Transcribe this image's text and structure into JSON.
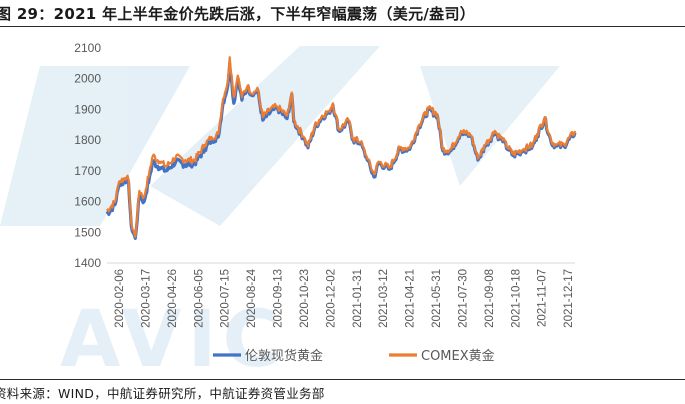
{
  "figure": {
    "title": "图 29：2021 年上半年金价先跌后涨，下半年窄幅震荡（美元/盎司）",
    "source": "资料来源：WIND，中航证券研究所，中航证券资管业务部",
    "watermark": "AVIC"
  },
  "colors": {
    "series_blue": "#4472c4",
    "series_orange": "#ed7d31",
    "axis": "#d9d9d9",
    "tick_text": "#595959",
    "watermark": "#cfe3f1"
  },
  "chart_data": {
    "type": "line",
    "title": "",
    "xlabel": "",
    "ylabel": "",
    "ylim": [
      1400,
      2100
    ],
    "yticks": [
      1400,
      1500,
      1600,
      1700,
      1800,
      1900,
      2000,
      2100
    ],
    "grid": false,
    "legend": "bottom-center",
    "xlim": [
      "2020-02-06",
      "2021-12-31"
    ],
    "x_tick_labels": [
      "2020-02-06",
      "2020-03-17",
      "2020-04-26",
      "2020-06-05",
      "2020-07-15",
      "2020-08-24",
      "2020-09-13",
      "2020-10-23",
      "2020-12-02",
      "2021-01-31",
      "2021-03-12",
      "2021-04-21",
      "2021-05-31",
      "2021-07-30",
      "2021-09-08",
      "2021-10-18",
      "2021-11-07",
      "2021-12-17"
    ],
    "series": [
      {
        "name": "伦敦现货黄金",
        "color": "#4472c4",
        "x": [
          "2020-02-06",
          "2020-02-18",
          "2020-02-24",
          "2020-03-06",
          "2020-03-09",
          "2020-03-13",
          "2020-03-19",
          "2020-03-25",
          "2020-04-01",
          "2020-04-09",
          "2020-04-14",
          "2020-04-24",
          "2020-05-04",
          "2020-05-18",
          "2020-06-01",
          "2020-06-15",
          "2020-06-30",
          "2020-07-10",
          "2020-07-20",
          "2020-07-27",
          "2020-08-03",
          "2020-08-06",
          "2020-08-12",
          "2020-08-18",
          "2020-08-24",
          "2020-09-01",
          "2020-09-10",
          "2020-09-16",
          "2020-09-24",
          "2020-10-05",
          "2020-10-15",
          "2020-10-30",
          "2020-11-06",
          "2020-11-09",
          "2020-11-24",
          "2020-11-30",
          "2020-12-10",
          "2020-12-21",
          "2020-12-31",
          "2021-01-06",
          "2021-01-15",
          "2021-01-29",
          "2021-02-05",
          "2021-02-16",
          "2021-02-26",
          "2021-03-08",
          "2021-03-15",
          "2021-03-31",
          "2021-04-15",
          "2021-04-30",
          "2021-05-14",
          "2021-05-28",
          "2021-06-10",
          "2021-06-18",
          "2021-06-30",
          "2021-07-15",
          "2021-07-30",
          "2021-08-09",
          "2021-08-20",
          "2021-09-03",
          "2021-09-15",
          "2021-09-30",
          "2021-10-15",
          "2021-10-29",
          "2021-11-05",
          "2021-11-16",
          "2021-11-26",
          "2021-12-03",
          "2021-12-15",
          "2021-12-31"
        ],
        "values": [
          1560,
          1590,
          1655,
          1670,
          1660,
          1520,
          1480,
          1620,
          1600,
          1680,
          1730,
          1710,
          1700,
          1730,
          1720,
          1725,
          1770,
          1800,
          1810,
          1920,
          1975,
          2050,
          1920,
          2000,
          1930,
          1970,
          1945,
          1965,
          1865,
          1890,
          1905,
          1870,
          1950,
          1860,
          1805,
          1775,
          1840,
          1875,
          1890,
          1915,
          1830,
          1860,
          1800,
          1790,
          1735,
          1680,
          1725,
          1705,
          1770,
          1770,
          1845,
          1900,
          1880,
          1765,
          1765,
          1825,
          1812,
          1735,
          1780,
          1825,
          1795,
          1750,
          1765,
          1780,
          1815,
          1870,
          1790,
          1780,
          1780,
          1825
        ]
      },
      {
        "name": "COMEX黄金",
        "color": "#ed7d31",
        "x": [
          "2020-02-06",
          "2020-02-18",
          "2020-02-24",
          "2020-03-06",
          "2020-03-09",
          "2020-03-13",
          "2020-03-19",
          "2020-03-25",
          "2020-04-01",
          "2020-04-09",
          "2020-04-14",
          "2020-04-24",
          "2020-05-04",
          "2020-05-18",
          "2020-06-01",
          "2020-06-15",
          "2020-06-30",
          "2020-07-10",
          "2020-07-20",
          "2020-07-27",
          "2020-08-03",
          "2020-08-06",
          "2020-08-12",
          "2020-08-18",
          "2020-08-24",
          "2020-09-01",
          "2020-09-10",
          "2020-09-16",
          "2020-09-24",
          "2020-10-05",
          "2020-10-15",
          "2020-10-30",
          "2020-11-06",
          "2020-11-09",
          "2020-11-24",
          "2020-11-30",
          "2020-12-10",
          "2020-12-21",
          "2020-12-31",
          "2021-01-06",
          "2021-01-15",
          "2021-01-29",
          "2021-02-05",
          "2021-02-16",
          "2021-02-26",
          "2021-03-08",
          "2021-03-15",
          "2021-03-31",
          "2021-04-15",
          "2021-04-30",
          "2021-05-14",
          "2021-05-28",
          "2021-06-10",
          "2021-06-18",
          "2021-06-30",
          "2021-07-15",
          "2021-07-30",
          "2021-08-09",
          "2021-08-20",
          "2021-09-03",
          "2021-09-15",
          "2021-09-30",
          "2021-10-15",
          "2021-10-29",
          "2021-11-05",
          "2021-11-16",
          "2021-11-26",
          "2021-12-03",
          "2021-12-15",
          "2021-12-31"
        ],
        "values": [
          1570,
          1600,
          1665,
          1680,
          1670,
          1530,
          1485,
          1635,
          1615,
          1700,
          1750,
          1730,
          1715,
          1745,
          1735,
          1735,
          1785,
          1810,
          1820,
          1935,
          1990,
          2070,
          1940,
          2010,
          1940,
          1975,
          1950,
          1970,
          1875,
          1900,
          1910,
          1880,
          1955,
          1865,
          1810,
          1780,
          1845,
          1880,
          1895,
          1920,
          1835,
          1865,
          1805,
          1795,
          1740,
          1690,
          1730,
          1710,
          1775,
          1775,
          1850,
          1905,
          1885,
          1770,
          1770,
          1830,
          1815,
          1740,
          1785,
          1830,
          1800,
          1755,
          1770,
          1785,
          1820,
          1875,
          1795,
          1785,
          1785,
          1830
        ]
      }
    ]
  }
}
